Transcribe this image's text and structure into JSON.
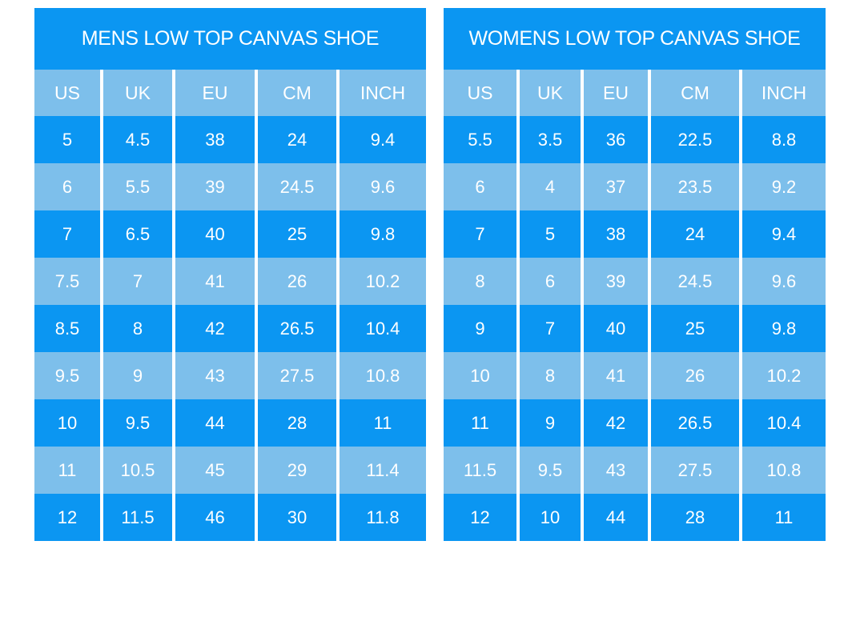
{
  "colors": {
    "dark_blue": "#0b96f2",
    "light_blue": "#7dbfeb",
    "text_white": "#ffffff",
    "page_background": "#ffffff"
  },
  "chart_data": [
    {
      "type": "table",
      "title": "MENS LOW TOP CANVAS SHOE",
      "columns": [
        "US",
        "UK",
        "EU",
        "CM",
        "INCH"
      ],
      "rows": [
        [
          "5",
          "4.5",
          "38",
          "24",
          "9.4"
        ],
        [
          "6",
          "5.5",
          "39",
          "24.5",
          "9.6"
        ],
        [
          "7",
          "6.5",
          "40",
          "25",
          "9.8"
        ],
        [
          "7.5",
          "7",
          "41",
          "26",
          "10.2"
        ],
        [
          "8.5",
          "8",
          "42",
          "26.5",
          "10.4"
        ],
        [
          "9.5",
          "9",
          "43",
          "27.5",
          "10.8"
        ],
        [
          "10",
          "9.5",
          "44",
          "28",
          "11"
        ],
        [
          "11",
          "10.5",
          "45",
          "29",
          "11.4"
        ],
        [
          "12",
          "11.5",
          "46",
          "30",
          "11.8"
        ]
      ]
    },
    {
      "type": "table",
      "title": "WOMENS LOW TOP CANVAS SHOE",
      "columns": [
        "US",
        "UK",
        "EU",
        "CM",
        "INCH"
      ],
      "rows": [
        [
          "5.5",
          "3.5",
          "36",
          "22.5",
          "8.8"
        ],
        [
          "6",
          "4",
          "37",
          "23.5",
          "9.2"
        ],
        [
          "7",
          "5",
          "38",
          "24",
          "9.4"
        ],
        [
          "8",
          "6",
          "39",
          "24.5",
          "9.6"
        ],
        [
          "9",
          "7",
          "40",
          "25",
          "9.8"
        ],
        [
          "10",
          "8",
          "41",
          "26",
          "10.2"
        ],
        [
          "11",
          "9",
          "42",
          "26.5",
          "10.4"
        ],
        [
          "11.5",
          "9.5",
          "43",
          "27.5",
          "10.8"
        ],
        [
          "12",
          "10",
          "44",
          "28",
          "11"
        ]
      ]
    }
  ]
}
